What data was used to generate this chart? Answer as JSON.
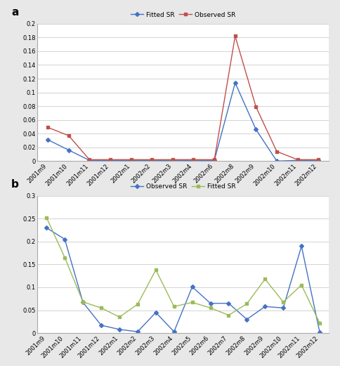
{
  "panel_a": {
    "x_labels": [
      "2001m9",
      "2001m10",
      "2001m11",
      "2001m12",
      "2002m1",
      "2002m2",
      "2002m3",
      "2002m4",
      "2002m6",
      "2002m8",
      "2002m9",
      "2002m10",
      "2002m11",
      "2002m12"
    ],
    "fitted_sr": [
      0.031,
      0.016,
      0.001,
      0.001,
      0.001,
      0.001,
      0.001,
      0.001,
      0.001,
      0.114,
      0.046,
      0.0,
      0.001,
      0.001
    ],
    "observed_sr": [
      0.049,
      0.037,
      0.002,
      0.002,
      0.002,
      0.002,
      0.002,
      0.002,
      0.002,
      0.182,
      0.079,
      0.014,
      0.002,
      0.002
    ],
    "fitted_color": "#4472C4",
    "observed_color": "#C0504D",
    "ylim": [
      0,
      0.2
    ],
    "yticks": [
      0,
      0.02,
      0.04,
      0.06,
      0.08,
      0.1,
      0.12,
      0.14,
      0.16,
      0.18,
      0.2
    ],
    "ytick_labels": [
      "0",
      "0.02",
      "0.04",
      "0.06",
      "0.08",
      "0.1",
      "0.12",
      "0.14",
      "0.16",
      "0.18",
      "0.2"
    ],
    "legend_fitted": "Fitted SR",
    "legend_observed": "Observed SR"
  },
  "panel_b": {
    "x_labels": [
      "2001m9",
      "2001m10",
      "2001m11",
      "2001m12",
      "2002m1",
      "2002m2",
      "2002m3",
      "2002m4",
      "2002m5",
      "2002m6",
      "2002m7",
      "2002m8",
      "2002m9",
      "2002m10",
      "2002m11",
      "2002m12"
    ],
    "observed_sr": [
      0.23,
      0.205,
      0.067,
      0.017,
      0.008,
      0.003,
      0.045,
      0.003,
      0.101,
      0.065,
      0.065,
      0.03,
      0.058,
      0.055,
      0.19,
      0.002
    ],
    "fitted_sr": [
      0.252,
      0.165,
      0.068,
      0.055,
      0.035,
      0.063,
      0.138,
      0.058,
      0.067,
      0.055,
      0.039,
      0.064,
      0.118,
      0.068,
      0.105,
      0.022
    ],
    "observed_color": "#4472C4",
    "fitted_color": "#9BBB59",
    "ylim": [
      0,
      0.3
    ],
    "yticks": [
      0,
      0.05,
      0.1,
      0.15,
      0.2,
      0.25,
      0.3
    ],
    "ytick_labels": [
      "0",
      "0.05",
      "0.1",
      "0.15",
      "0.2",
      "0.25",
      "0.3"
    ],
    "legend_observed": "Observed SR",
    "legend_fitted": "Fitted SR"
  },
  "bg_color": "#e8e8e8",
  "plot_bg_color": "#ffffff",
  "grid_color": "#cccccc",
  "fontsize_tick": 6,
  "fontsize_legend": 6.5,
  "marker_size_fitted": 3,
  "marker_size_observed": 3.5,
  "linewidth": 1.0
}
